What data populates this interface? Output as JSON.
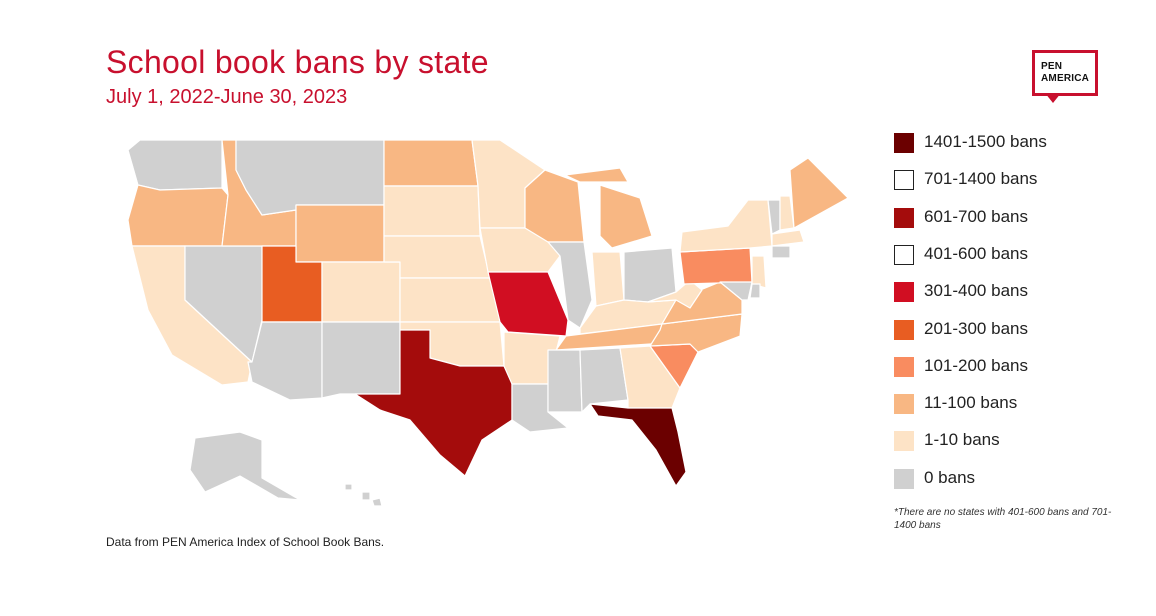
{
  "header": {
    "title": "School book bans by state",
    "subtitle": "July 1, 2022-June 30, 2023"
  },
  "logo": {
    "line1": "PEN",
    "line2": "AMERICA"
  },
  "legend": {
    "items": [
      {
        "label": "1401-1500 bans",
        "color": "#6b0000",
        "filled": true
      },
      {
        "label": "701-1400 bans",
        "color": "#ffffff",
        "filled": false
      },
      {
        "label": "601-700 bans",
        "color": "#a40c0c",
        "filled": true
      },
      {
        "label": "401-600 bans",
        "color": "#ffffff",
        "filled": false
      },
      {
        "label": "301-400 bans",
        "color": "#d10e22",
        "filled": true
      },
      {
        "label": "201-300 bans",
        "color": "#e85d22",
        "filled": true
      },
      {
        "label": "101-200 bans",
        "color": "#f98c60",
        "filled": true
      },
      {
        "label": "11-100 bans",
        "color": "#f8b783",
        "filled": true
      },
      {
        "label": "1-10 bans",
        "color": "#fde3c6",
        "filled": true
      },
      {
        "label": "0 bans",
        "color": "#d0d0d0",
        "filled": true
      }
    ],
    "footnote": "*There are no states with 401-600 bans and 701-1400 bans"
  },
  "source": "Data from PEN America Index of School Book Bans.",
  "states": [
    {
      "code": "WA",
      "category": "0 bans"
    },
    {
      "code": "OR",
      "category": "11-100 bans"
    },
    {
      "code": "CA",
      "category": "1-10 bans"
    },
    {
      "code": "NV",
      "category": "0 bans"
    },
    {
      "code": "ID",
      "category": "11-100 bans"
    },
    {
      "code": "MT",
      "category": "0 bans"
    },
    {
      "code": "WY",
      "category": "11-100 bans"
    },
    {
      "code": "UT",
      "category": "201-300 bans"
    },
    {
      "code": "AZ",
      "category": "0 bans"
    },
    {
      "code": "CO",
      "category": "1-10 bans"
    },
    {
      "code": "NM",
      "category": "0 bans"
    },
    {
      "code": "ND",
      "category": "11-100 bans"
    },
    {
      "code": "SD",
      "category": "1-10 bans"
    },
    {
      "code": "NE",
      "category": "1-10 bans"
    },
    {
      "code": "KS",
      "category": "1-10 bans"
    },
    {
      "code": "OK",
      "category": "1-10 bans"
    },
    {
      "code": "TX",
      "category": "601-700 bans"
    },
    {
      "code": "MN",
      "category": "1-10 bans"
    },
    {
      "code": "IA",
      "category": "1-10 bans"
    },
    {
      "code": "MO",
      "category": "301-400 bans"
    },
    {
      "code": "AR",
      "category": "1-10 bans"
    },
    {
      "code": "LA",
      "category": "0 bans"
    },
    {
      "code": "WI",
      "category": "11-100 bans"
    },
    {
      "code": "IL",
      "category": "0 bans"
    },
    {
      "code": "MI",
      "category": "11-100 bans"
    },
    {
      "code": "IN",
      "category": "1-10 bans"
    },
    {
      "code": "OH",
      "category": "0 bans"
    },
    {
      "code": "KY",
      "category": "1-10 bans"
    },
    {
      "code": "TN",
      "category": "11-100 bans"
    },
    {
      "code": "MS",
      "category": "0 bans"
    },
    {
      "code": "AL",
      "category": "0 bans"
    },
    {
      "code": "GA",
      "category": "1-10 bans"
    },
    {
      "code": "FL",
      "category": "1401-1500 bans"
    },
    {
      "code": "SC",
      "category": "101-200 bans"
    },
    {
      "code": "NC",
      "category": "11-100 bans"
    },
    {
      "code": "VA",
      "category": "11-100 bans"
    },
    {
      "code": "WV",
      "category": "1-10 bans"
    },
    {
      "code": "PA",
      "category": "101-200 bans"
    },
    {
      "code": "NY",
      "category": "1-10 bans"
    },
    {
      "code": "VT",
      "category": "0 bans"
    },
    {
      "code": "NH",
      "category": "1-10 bans"
    },
    {
      "code": "ME",
      "category": "11-100 bans"
    },
    {
      "code": "MA",
      "category": "1-10 bans"
    },
    {
      "code": "CT",
      "category": "0 bans"
    },
    {
      "code": "NJ",
      "category": "1-10 bans"
    },
    {
      "code": "MD",
      "category": "0 bans"
    },
    {
      "code": "DE",
      "category": "0 bans"
    },
    {
      "code": "AK",
      "category": "0 bans"
    },
    {
      "code": "HI",
      "category": "0 bans"
    }
  ]
}
